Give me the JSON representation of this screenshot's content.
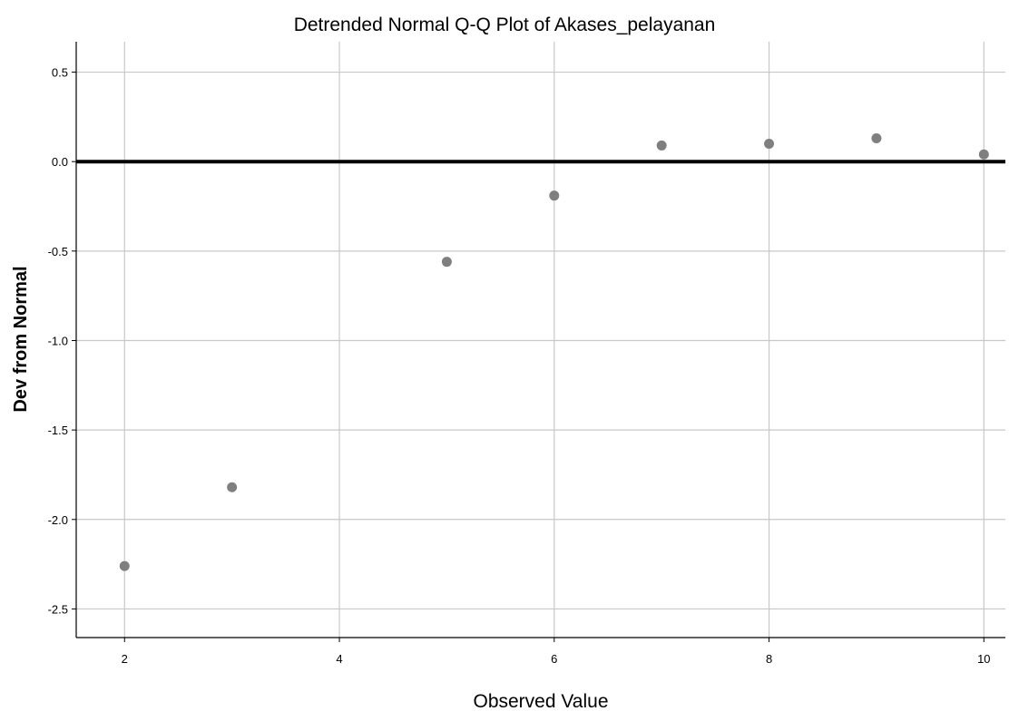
{
  "chart_data": {
    "type": "scatter",
    "title": "Detrended Normal Q-Q Plot of Akases_pelayanan",
    "xlabel": "Observed Value",
    "ylabel": "Dev from Normal",
    "xlim": [
      1.55,
      10.2
    ],
    "ylim": [
      -2.66,
      0.67
    ],
    "x_ticks": [
      2,
      4,
      6,
      8,
      10
    ],
    "x_tick_labels": [
      "2",
      "4",
      "6",
      "8",
      "10"
    ],
    "y_ticks": [
      0.5,
      0.0,
      -0.5,
      -1.0,
      -1.5,
      -2.0,
      -2.5
    ],
    "y_tick_labels": [
      "0.5",
      "0.0",
      "-0.5",
      "-1.0",
      "-1.5",
      "-2.0",
      "-2.5"
    ],
    "grid": true,
    "reference_line_y": 0,
    "series": [
      {
        "x": [
          2,
          3,
          5,
          6,
          7,
          8,
          9,
          10
        ],
        "y": [
          -2.26,
          -1.82,
          -0.56,
          -0.19,
          0.09,
          0.1,
          0.13,
          0.04
        ]
      }
    ],
    "colors": {
      "marker": "#7f7f7f",
      "grid": "#c8c8c8",
      "axis": "#000000",
      "reference_line": "#000000"
    }
  }
}
